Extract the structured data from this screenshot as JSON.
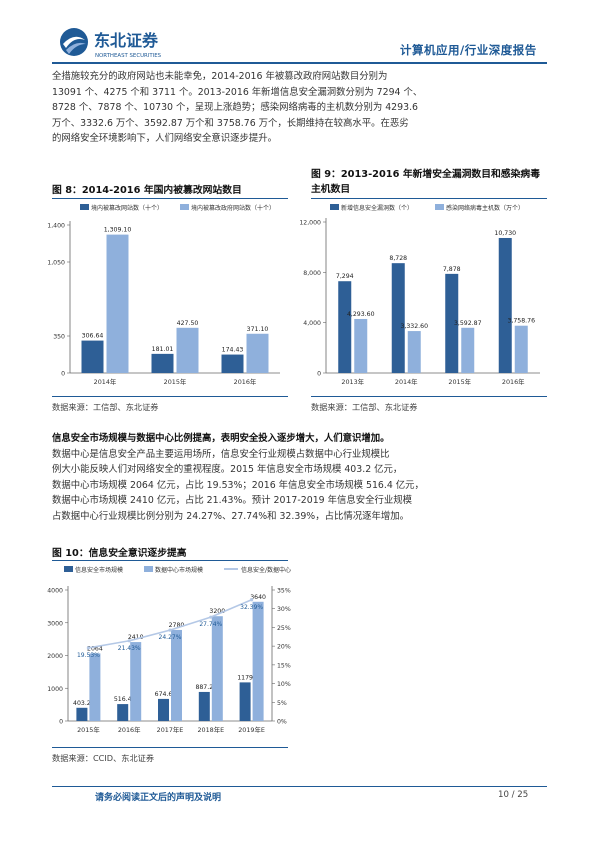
{
  "header": {
    "logo_cn": "东北证券",
    "logo_en": "NORTHEAST SECURITIES",
    "report_title": "计算机应用/行业深度报告"
  },
  "para1": [
    "全措施较充分的政府网站也未能幸免，2014-2016 年被篡改政府网站数目分别为",
    "13091 个、4275 个和 3711 个。2013-2016 年新增信息安全漏洞数分别为 7294 个、",
    "8728 个、7878 个、10730 个，呈现上涨趋势；感染网络病毒的主机数分别为 4293.6",
    "万个、3332.6 万个、3592.87 万个和 3758.76 万个，长期维持在较高水平。在恶劣",
    "的网络安全环境影响下，人们网络安全意识逐步提升。"
  ],
  "fig8": {
    "title": "图  8：2014-2016 年国内被篡改网站数目",
    "source": "数据来源：工信部、东北证券"
  },
  "fig9": {
    "title_line1": "图  9：2013-2016 年新增安全漏洞数目和感染病毒",
    "title_line2": "主机数目",
    "source": "数据来源：工信部、东北证券"
  },
  "para2": {
    "bold": "信息安全市场规模与数据中心比例提高，表明安全投入逐步增大，人们意识增加。",
    "lines": [
      "数据中心是信息安全产品主要运用场所，信息安全行业规模占数据中心行业规模比",
      "例大小能反映人们对网络安全的重视程度。2015 年信息安全市场规模 403.2 亿元，",
      "数据中心市场规模 2064 亿元，占比 19.53%；2016 年信息安全市场规模 516.4 亿元，",
      "数据中心市场规模 2410 亿元，占比 21.43%。预计 2017-2019 年信息安全行业规模",
      "占数据中心行业规模比例分别为 24.27%、27.74%和 32.39%，占比情况逐年增加。"
    ]
  },
  "fig10": {
    "title": "图  10：信息安全意识逐步提高",
    "source": "数据来源：CCID、东北证券"
  },
  "footer": {
    "disclaimer": "请务必阅读正文后的声明及说明",
    "page": "10 / 25"
  },
  "colors": {
    "primary": "#2e5f96",
    "secondary": "#8fb0dc",
    "line": "#b4c8e6",
    "accent": "#1f5a96"
  },
  "chart_data": [
    {
      "type": "bar",
      "id": "fig8",
      "categories": [
        "2014年",
        "2015年",
        "2016年"
      ],
      "series": [
        {
          "name": "境内被篡改网站数（十个）",
          "values": [
            306.64,
            181.01,
            174.43
          ],
          "labels": [
            "306.64",
            "181.01",
            "174.43"
          ]
        },
        {
          "name": "境内被篡改政府网站数（十个）",
          "values": [
            1309.1,
            427.5,
            371.1
          ],
          "labels": [
            "1,309.10",
            "427.50",
            "371.10"
          ]
        }
      ],
      "ylim": [
        0,
        1400
      ],
      "yticks": [
        0,
        350,
        1050,
        1400
      ],
      "ytick_labels": [
        "0",
        "350",
        "1,050",
        "1,400"
      ],
      "legend": "top"
    },
    {
      "type": "bar",
      "id": "fig9",
      "categories": [
        "2013年",
        "2014年",
        "2015年",
        "2016年"
      ],
      "series": [
        {
          "name": "新增信息安全漏洞数（个）",
          "values": [
            7294,
            8728,
            7878,
            10730
          ],
          "labels": [
            "7,294",
            "8,728",
            "7,878",
            "10,730"
          ]
        },
        {
          "name": "感染网络病毒主机数（万个）",
          "values": [
            4293.6,
            3332.6,
            3592.87,
            3758.76
          ],
          "labels": [
            "4,293.60",
            "3,332.60",
            "3,592.87",
            "3,758.76"
          ]
        }
      ],
      "ylim": [
        0,
        12000
      ],
      "yticks": [
        0,
        4000,
        8000,
        12000
      ],
      "ytick_labels": [
        "0",
        "4,000",
        "8,000",
        "12,000"
      ],
      "legend": "top"
    },
    {
      "type": "bar",
      "id": "fig10",
      "categories": [
        "2015年",
        "2016年",
        "2017年E",
        "2018年E",
        "2019年E"
      ],
      "series": [
        {
          "name": "信息安全市场规模",
          "values": [
            403.2,
            516.4,
            674.6,
            887.2,
            1179
          ],
          "labels": [
            "403.2",
            "516.4",
            "674.6",
            "887.2",
            "1179"
          ]
        },
        {
          "name": "数据中心市场规模",
          "values": [
            2064,
            2410,
            2780,
            3200,
            3640
          ],
          "labels": [
            "2064",
            "2410",
            "2780",
            "3200",
            "3640"
          ]
        },
        {
          "name": "信息安全/数据中心",
          "type": "line",
          "axis": "right",
          "values": [
            19.53,
            21.43,
            24.27,
            27.74,
            32.39
          ],
          "labels": [
            "19.53%",
            "21.43%",
            "24.27%",
            "27.74%",
            "32.39%"
          ]
        }
      ],
      "ylim": [
        0,
        4000
      ],
      "yticks": [
        0,
        1000,
        2000,
        3000,
        4000
      ],
      "ytick_labels": [
        "0",
        "1000",
        "2000",
        "3000",
        "4000"
      ],
      "y2lim": [
        0,
        35
      ],
      "y2ticks": [
        0,
        5,
        10,
        15,
        20,
        25,
        30,
        35
      ],
      "y2tick_labels": [
        "0%",
        "5%",
        "10%",
        "15%",
        "20%",
        "25%",
        "30%",
        "35%"
      ],
      "legend": "top"
    }
  ]
}
